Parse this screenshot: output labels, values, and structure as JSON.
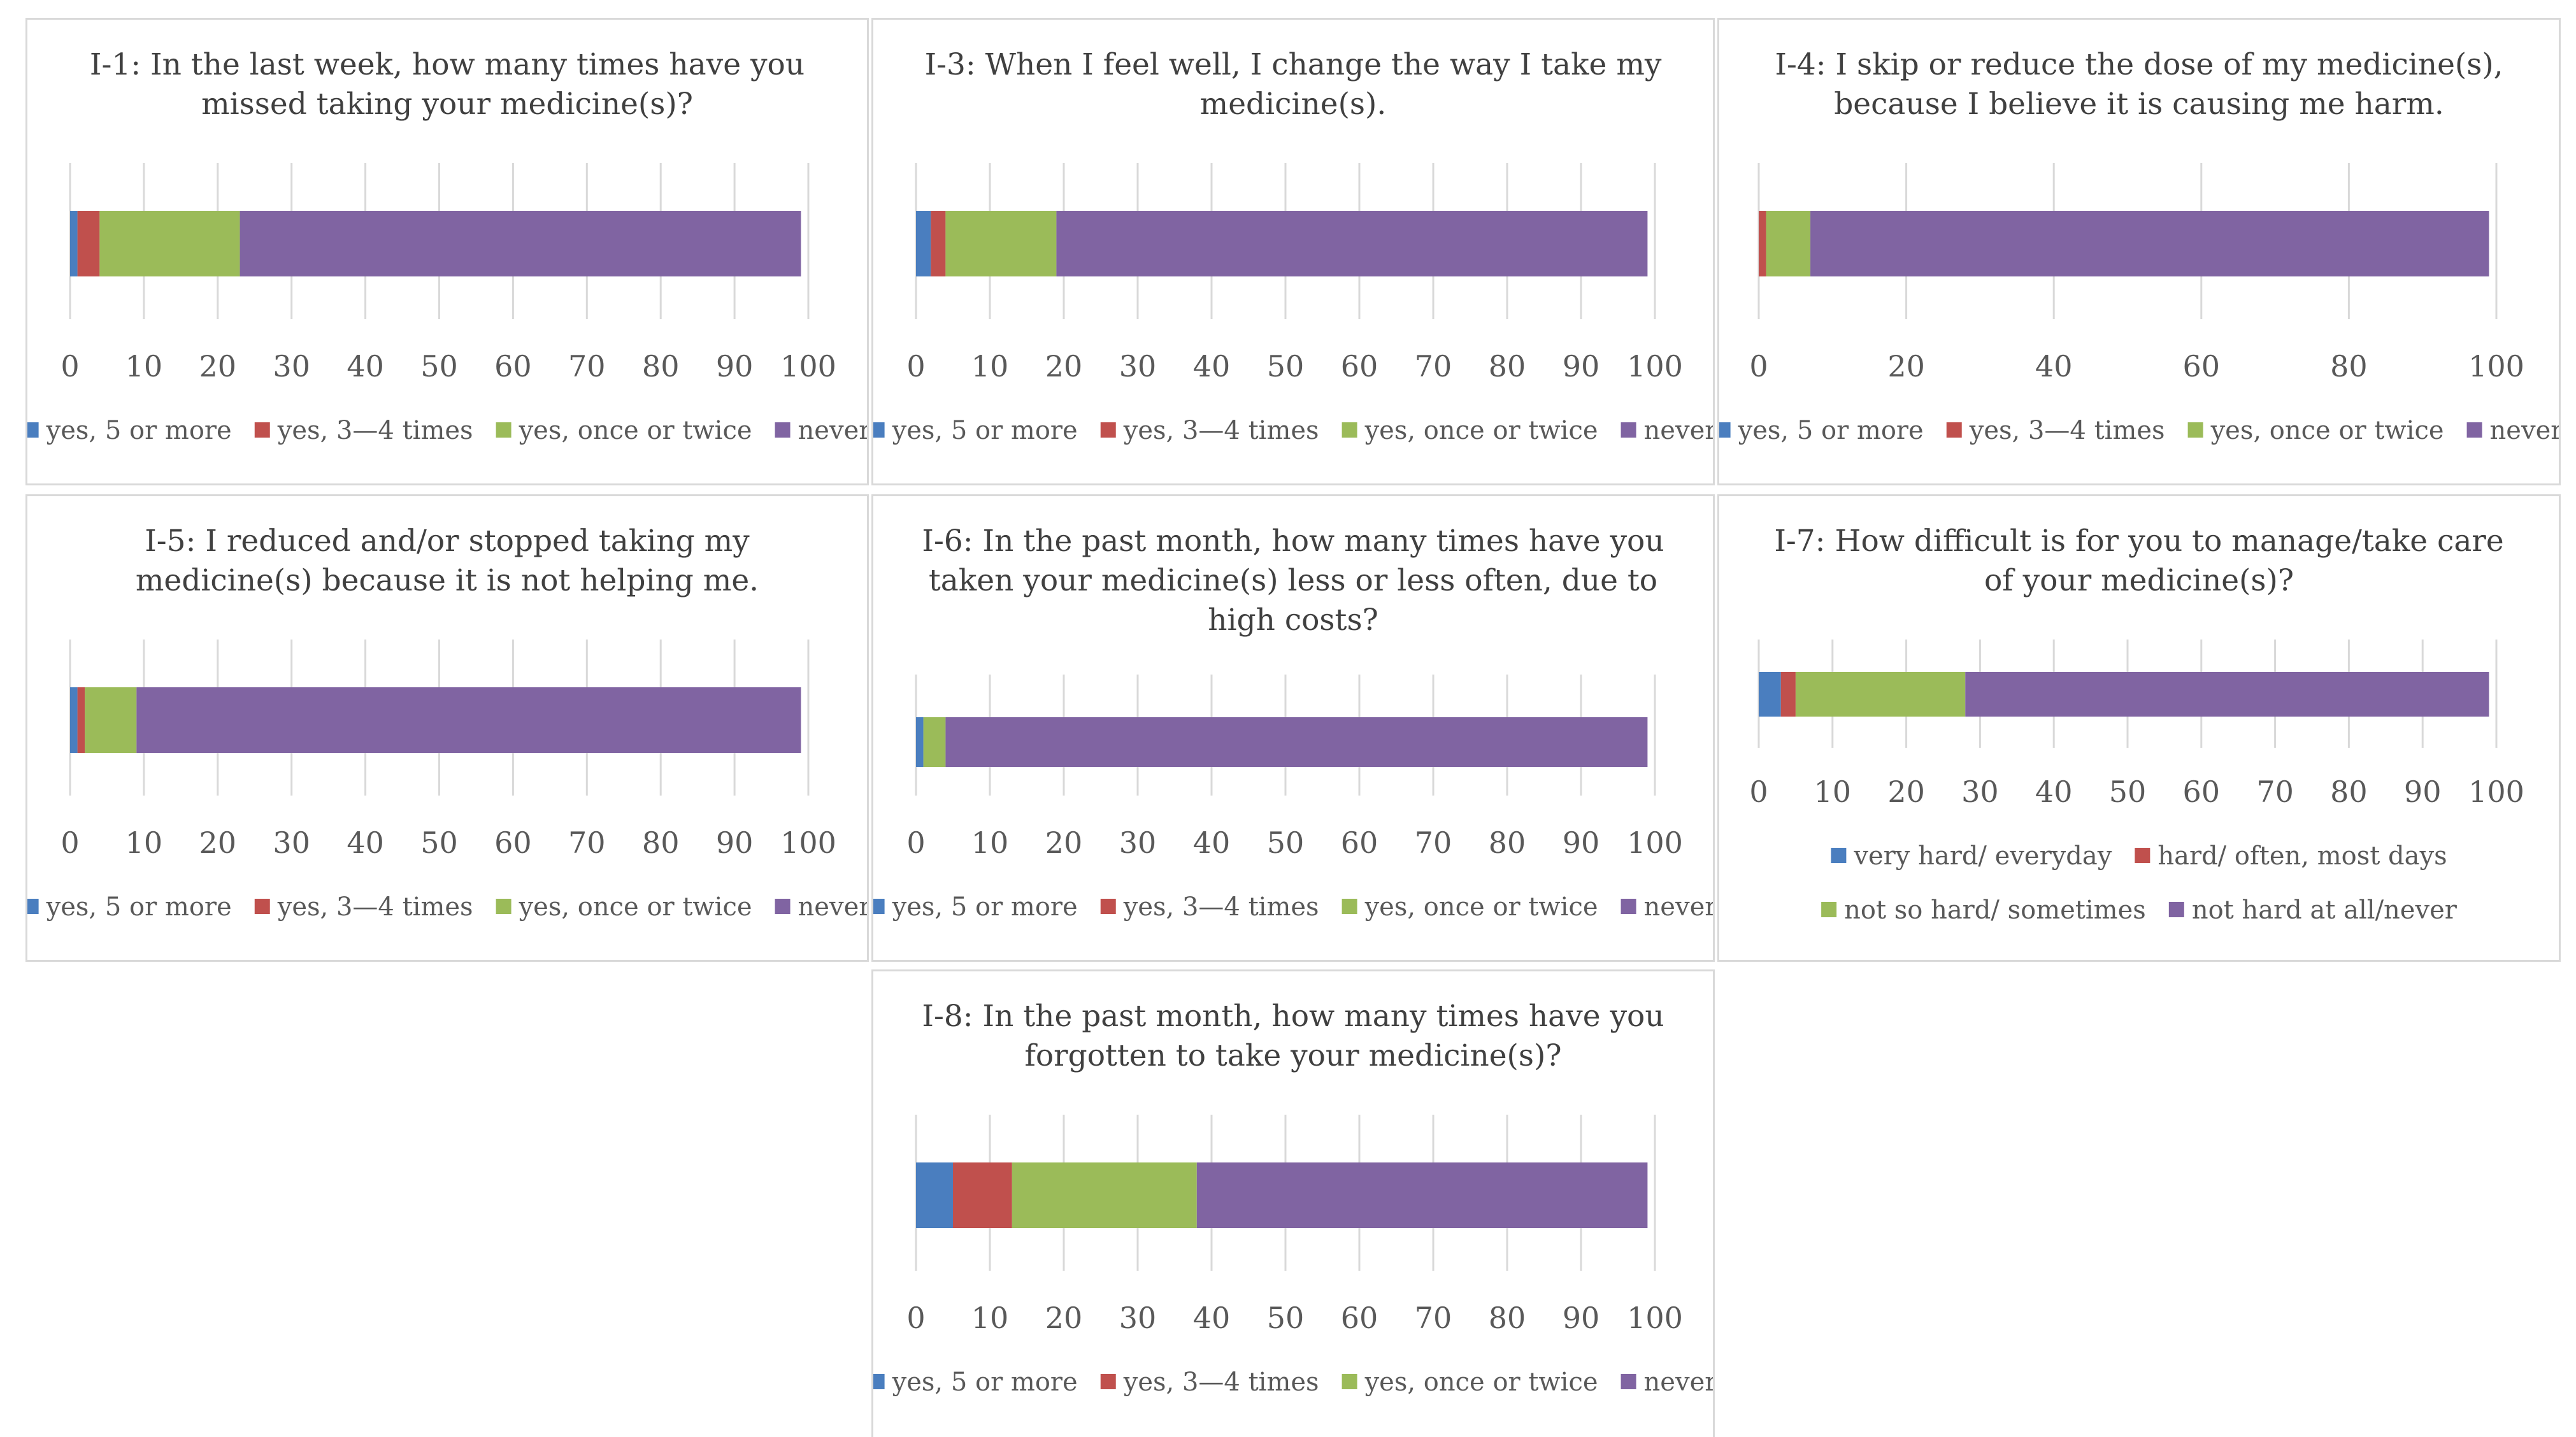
{
  "colors": {
    "series": [
      "#4a7ebf",
      "#c0504d",
      "#9bbb59",
      "#8064a2"
    ],
    "grid": "#d9d9d9",
    "text": "#595959",
    "title": "#404040",
    "panel_border": "#d9d9d9"
  },
  "chart_data": [
    {
      "id": "i1",
      "type": "bar",
      "orientation": "horizontal",
      "stacked": true,
      "title": "I-1: In the last week, how many times have you missed taking your medicine(s)?",
      "title_lines": [
        "I-1: In the last week, how many times have you",
        "missed taking your medicine(s)?"
      ],
      "series": [
        {
          "name": "yes, 5 or more",
          "values": [
            1
          ]
        },
        {
          "name": "yes, 3—4 times",
          "values": [
            3
          ]
        },
        {
          "name": "yes, once or twice",
          "values": [
            19
          ]
        },
        {
          "name": "never",
          "values": [
            76
          ]
        }
      ],
      "xlim": [
        0,
        100
      ],
      "xticks": [
        "0",
        "10",
        "20",
        "30",
        "40",
        "50",
        "60",
        "70",
        "80",
        "90",
        "100"
      ],
      "grid": true,
      "legend": "bottom",
      "legend_rows": [
        [
          0,
          1,
          2,
          3
        ]
      ]
    },
    {
      "id": "i3",
      "type": "bar",
      "orientation": "horizontal",
      "stacked": true,
      "title": "I-3: When I feel well, I change the way I take my medicine(s).",
      "title_lines": [
        "I-3: When I feel well, I change the way I take my",
        "medicine(s)."
      ],
      "series": [
        {
          "name": "yes, 5 or more",
          "values": [
            2
          ]
        },
        {
          "name": "yes, 3—4 times",
          "values": [
            2
          ]
        },
        {
          "name": "yes, once or twice",
          "values": [
            15
          ]
        },
        {
          "name": "never",
          "values": [
            80
          ]
        }
      ],
      "xlim": [
        0,
        100
      ],
      "xticks": [
        "0",
        "10",
        "20",
        "30",
        "40",
        "50",
        "60",
        "70",
        "80",
        "90",
        "100"
      ],
      "grid": true,
      "legend": "bottom",
      "legend_rows": [
        [
          0,
          1,
          2,
          3
        ]
      ]
    },
    {
      "id": "i4",
      "type": "bar",
      "orientation": "horizontal",
      "stacked": true,
      "title": "I-4: I skip or reduce the dose of my medicine(s), because I believe it is causing me harm.",
      "title_lines": [
        "I-4: I skip or reduce the dose of my medicine(s),",
        "because I believe it is causing me harm."
      ],
      "series": [
        {
          "name": "yes, 5 or more",
          "values": [
            0
          ]
        },
        {
          "name": "yes, 3—4 times",
          "values": [
            1
          ]
        },
        {
          "name": "yes, once or twice",
          "values": [
            6
          ]
        },
        {
          "name": "never",
          "values": [
            92
          ]
        }
      ],
      "xlim": [
        0,
        100
      ],
      "xticks": [
        "0",
        "20",
        "40",
        "60",
        "80",
        "100"
      ],
      "grid": true,
      "legend": "bottom",
      "legend_rows": [
        [
          0,
          1,
          2,
          3
        ]
      ]
    },
    {
      "id": "i5",
      "type": "bar",
      "orientation": "horizontal",
      "stacked": true,
      "title": "I-5: I reduced and/or stopped taking my medicine(s) because it is not helping me.",
      "title_lines": [
        "I-5: I reduced and/or stopped taking my",
        "medicine(s) because it is not helping me."
      ],
      "series": [
        {
          "name": "yes, 5 or more",
          "values": [
            1
          ]
        },
        {
          "name": "yes, 3—4 times",
          "values": [
            1
          ]
        },
        {
          "name": "yes, once or twice",
          "values": [
            7
          ]
        },
        {
          "name": "never",
          "values": [
            90
          ]
        }
      ],
      "xlim": [
        0,
        100
      ],
      "xticks": [
        "0",
        "10",
        "20",
        "30",
        "40",
        "50",
        "60",
        "70",
        "80",
        "90",
        "100"
      ],
      "grid": true,
      "legend": "bottom",
      "legend_rows": [
        [
          0,
          1,
          2,
          3
        ]
      ]
    },
    {
      "id": "i6",
      "type": "bar",
      "orientation": "horizontal",
      "stacked": true,
      "title": "I-6: In the past month, how many times have you taken your medicine(s) less or less often, due to high costs?",
      "title_lines": [
        "I-6: In the past month, how many times have you",
        "taken your medicine(s) less or less often, due to",
        "high costs?"
      ],
      "series": [
        {
          "name": "yes, 5 or more",
          "values": [
            1
          ]
        },
        {
          "name": "yes, 3—4 times",
          "values": [
            0
          ]
        },
        {
          "name": "yes, once or twice",
          "values": [
            3
          ]
        },
        {
          "name": "never",
          "values": [
            95
          ]
        }
      ],
      "xlim": [
        0,
        100
      ],
      "xticks": [
        "0",
        "10",
        "20",
        "30",
        "40",
        "50",
        "60",
        "70",
        "80",
        "90",
        "100"
      ],
      "grid": true,
      "legend": "bottom",
      "legend_rows": [
        [
          0,
          1,
          2,
          3
        ]
      ]
    },
    {
      "id": "i7",
      "type": "bar",
      "orientation": "horizontal",
      "stacked": true,
      "title": "I-7: How difficult is for you to manage/take care of your medicine(s)?",
      "title_lines": [
        "I-7: How difficult is for you to manage/take care",
        "of your medicine(s)?"
      ],
      "series": [
        {
          "name": "very hard/ everyday",
          "values": [
            3
          ]
        },
        {
          "name": "hard/ often, most days",
          "values": [
            2
          ]
        },
        {
          "name": "not so hard/ sometimes",
          "values": [
            23
          ]
        },
        {
          "name": "not hard at all/never",
          "values": [
            71
          ]
        }
      ],
      "xlim": [
        0,
        100
      ],
      "xticks": [
        "0",
        "10",
        "20",
        "30",
        "40",
        "50",
        "60",
        "70",
        "80",
        "90",
        "100"
      ],
      "grid": true,
      "legend": "bottom",
      "legend_rows": [
        [
          0,
          1
        ],
        [
          2,
          3
        ]
      ]
    },
    {
      "id": "i8",
      "type": "bar",
      "orientation": "horizontal",
      "stacked": true,
      "title": "I-8: In the past month, how many times have you forgotten to take your medicine(s)?",
      "title_lines": [
        "I-8: In the past month, how many times have you",
        "forgotten to take your medicine(s)?"
      ],
      "series": [
        {
          "name": "yes, 5 or more",
          "values": [
            5
          ]
        },
        {
          "name": "yes, 3—4 times",
          "values": [
            8
          ]
        },
        {
          "name": "yes, once or twice",
          "values": [
            25
          ]
        },
        {
          "name": "never",
          "values": [
            61
          ]
        }
      ],
      "xlim": [
        0,
        100
      ],
      "xticks": [
        "0",
        "10",
        "20",
        "30",
        "40",
        "50",
        "60",
        "70",
        "80",
        "90",
        "100"
      ],
      "grid": true,
      "legend": "bottom",
      "legend_rows": [
        [
          0,
          1,
          2,
          3
        ]
      ]
    }
  ]
}
